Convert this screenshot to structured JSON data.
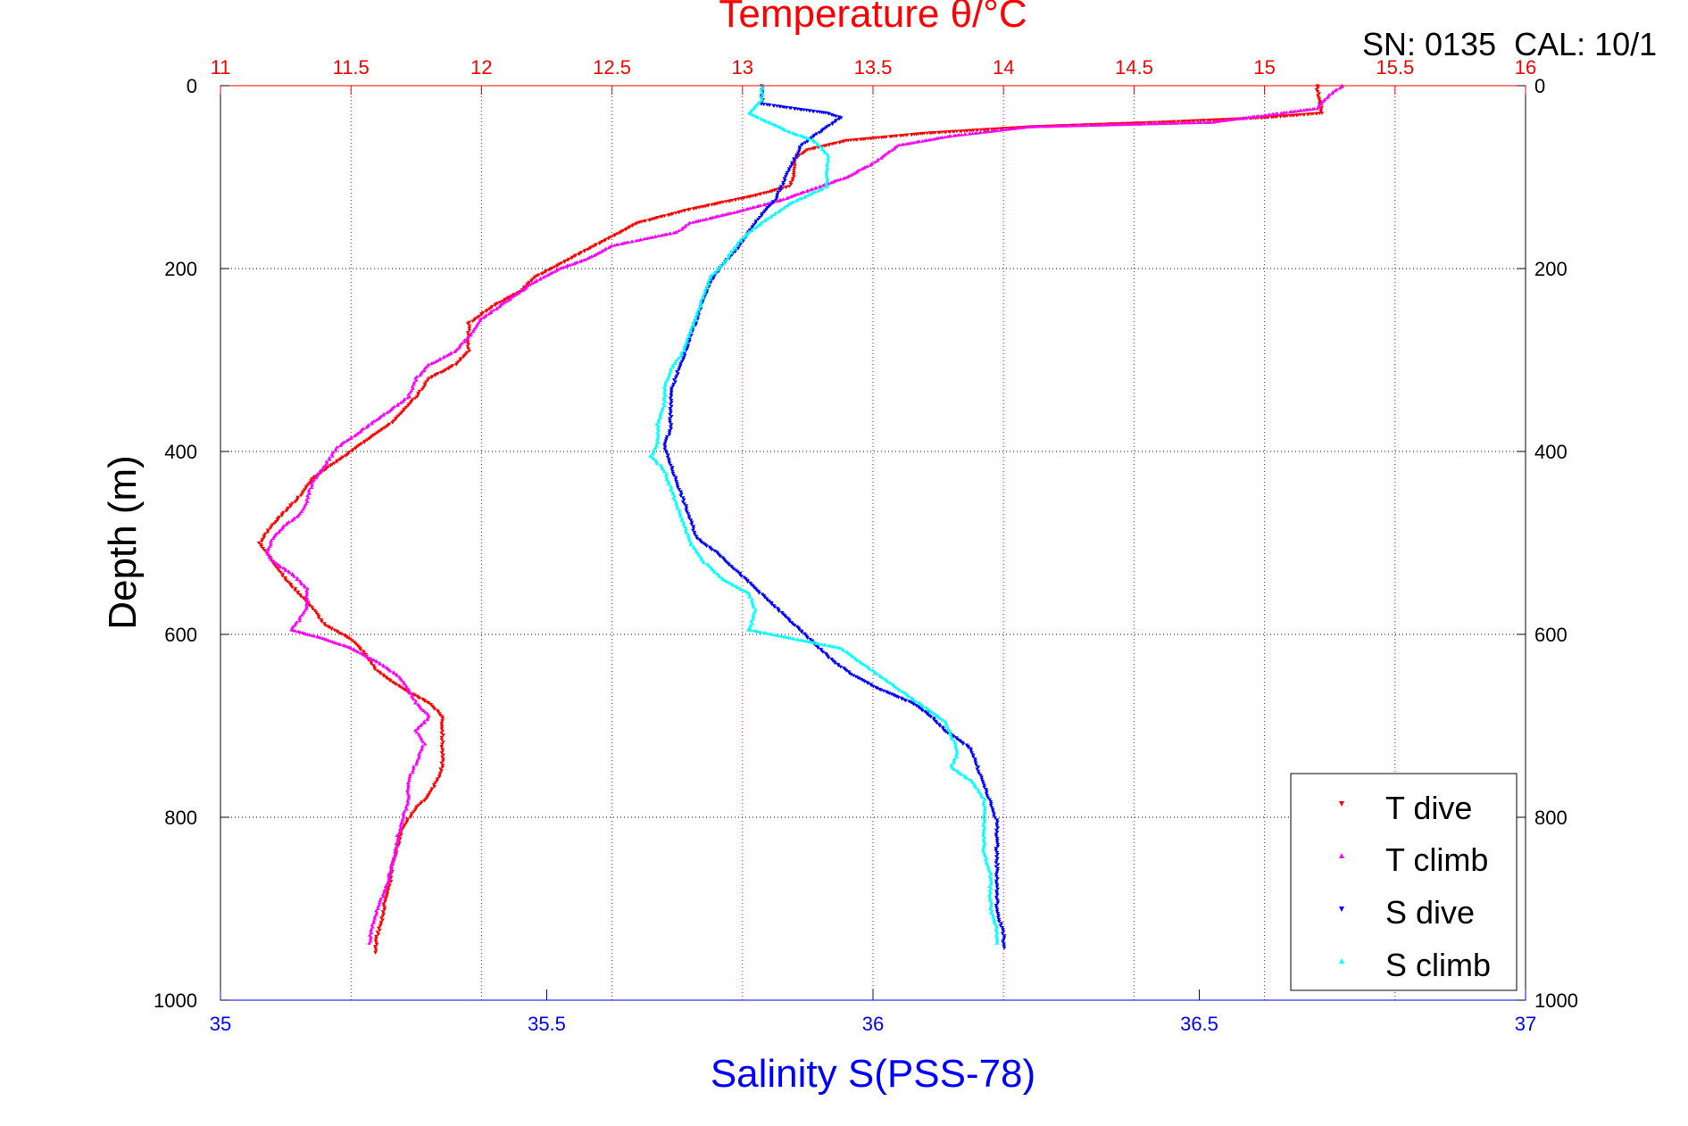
{
  "chart_data": {
    "type": "scatter",
    "title": "Temperature θ/°C",
    "annotation": "SN: 0135  CAL: 10/1",
    "ylabel": "Depth (m)",
    "xlabel_bottom": "Salinity S(PSS-78)",
    "xlabel_top": "Temperature θ/°C",
    "y_axis": {
      "range": [
        0,
        1000
      ],
      "inverted": true,
      "ticks": [
        "0",
        "200",
        "400",
        "600",
        "800",
        "1000"
      ]
    },
    "x_top_axis": {
      "range": [
        11,
        16
      ],
      "ticks": [
        "11",
        "11.5",
        "12",
        "12.5",
        "13",
        "13.5",
        "14",
        "14.5",
        "15",
        "15.5",
        "16"
      ],
      "color": "#ff0000",
      "grid": true
    },
    "x_bottom_axis": {
      "range": [
        35,
        37
      ],
      "ticks": [
        "35",
        "35.5",
        "36",
        "36.5",
        "37"
      ],
      "color": "#0000ff"
    },
    "grid": "dotted",
    "legend_position": "bottom-right",
    "series": [
      {
        "name": "T dive",
        "axis": "temperature",
        "color": "#ff0000",
        "marker": "triangle-down",
        "points": [
          [
            15.2,
            0
          ],
          [
            15.21,
            15
          ],
          [
            15.22,
            30
          ],
          [
            15.0,
            35
          ],
          [
            14.6,
            40
          ],
          [
            14.1,
            45
          ],
          [
            13.7,
            52
          ],
          [
            13.4,
            60
          ],
          [
            13.25,
            70
          ],
          [
            13.2,
            80
          ],
          [
            13.2,
            95
          ],
          [
            13.18,
            110
          ],
          [
            13.05,
            120
          ],
          [
            12.8,
            135
          ],
          [
            12.6,
            150
          ],
          [
            12.5,
            165
          ],
          [
            12.4,
            180
          ],
          [
            12.3,
            195
          ],
          [
            12.2,
            210
          ],
          [
            12.15,
            225
          ],
          [
            12.05,
            240
          ],
          [
            11.95,
            260
          ],
          [
            11.95,
            275
          ],
          [
            11.95,
            290
          ],
          [
            11.9,
            305
          ],
          [
            11.8,
            320
          ],
          [
            11.75,
            340
          ],
          [
            11.7,
            355
          ],
          [
            11.65,
            370
          ],
          [
            11.55,
            390
          ],
          [
            11.45,
            410
          ],
          [
            11.35,
            430
          ],
          [
            11.3,
            450
          ],
          [
            11.25,
            465
          ],
          [
            11.2,
            480
          ],
          [
            11.15,
            500
          ],
          [
            11.2,
            520
          ],
          [
            11.25,
            540
          ],
          [
            11.3,
            555
          ],
          [
            11.35,
            570
          ],
          [
            11.4,
            590
          ],
          [
            11.5,
            605
          ],
          [
            11.55,
            620
          ],
          [
            11.6,
            640
          ],
          [
            11.7,
            660
          ],
          [
            11.8,
            675
          ],
          [
            11.85,
            690
          ],
          [
            11.85,
            710
          ],
          [
            11.85,
            725
          ],
          [
            11.85,
            745
          ],
          [
            11.83,
            760
          ],
          [
            11.8,
            775
          ],
          [
            11.75,
            790
          ],
          [
            11.7,
            810
          ],
          [
            11.68,
            830
          ],
          [
            11.66,
            850
          ],
          [
            11.65,
            870
          ],
          [
            11.63,
            890
          ],
          [
            11.62,
            910
          ],
          [
            11.6,
            930
          ],
          [
            11.59,
            950
          ]
        ]
      },
      {
        "name": "T climb",
        "axis": "temperature",
        "color": "#ff00ff",
        "marker": "triangle-up",
        "points": [
          [
            15.3,
            0
          ],
          [
            15.25,
            10
          ],
          [
            15.2,
            25
          ],
          [
            14.8,
            40
          ],
          [
            14.1,
            45
          ],
          [
            13.8,
            55
          ],
          [
            13.6,
            65
          ],
          [
            13.55,
            75
          ],
          [
            13.5,
            85
          ],
          [
            13.4,
            100
          ],
          [
            13.3,
            110
          ],
          [
            13.15,
            125
          ],
          [
            12.95,
            140
          ],
          [
            12.8,
            150
          ],
          [
            12.75,
            160
          ],
          [
            12.5,
            175
          ],
          [
            12.4,
            190
          ],
          [
            12.3,
            200
          ],
          [
            12.2,
            215
          ],
          [
            12.1,
            235
          ],
          [
            12.0,
            255
          ],
          [
            11.95,
            275
          ],
          [
            11.9,
            290
          ],
          [
            11.8,
            305
          ],
          [
            11.75,
            320
          ],
          [
            11.72,
            340
          ],
          [
            11.65,
            355
          ],
          [
            11.55,
            375
          ],
          [
            11.45,
            395
          ],
          [
            11.4,
            415
          ],
          [
            11.35,
            435
          ],
          [
            11.33,
            455
          ],
          [
            11.3,
            470
          ],
          [
            11.25,
            480
          ],
          [
            11.2,
            495
          ],
          [
            11.18,
            510
          ],
          [
            11.2,
            520
          ],
          [
            11.28,
            535
          ],
          [
            11.33,
            550
          ],
          [
            11.33,
            570
          ],
          [
            11.3,
            585
          ],
          [
            11.27,
            595
          ],
          [
            11.4,
            605
          ],
          [
            11.5,
            615
          ],
          [
            11.6,
            630
          ],
          [
            11.68,
            645
          ],
          [
            11.72,
            660
          ],
          [
            11.75,
            675
          ],
          [
            11.8,
            690
          ],
          [
            11.75,
            705
          ],
          [
            11.78,
            720
          ],
          [
            11.75,
            740
          ],
          [
            11.72,
            760
          ],
          [
            11.72,
            780
          ],
          [
            11.7,
            800
          ],
          [
            11.68,
            820
          ],
          [
            11.67,
            840
          ],
          [
            11.65,
            860
          ],
          [
            11.63,
            880
          ],
          [
            11.6,
            900
          ],
          [
            11.58,
            920
          ],
          [
            11.57,
            940
          ]
        ]
      },
      {
        "name": "S dive",
        "axis": "salinity",
        "color": "#0000ff",
        "marker": "triangle-down",
        "points": [
          [
            35.83,
            0
          ],
          [
            35.83,
            20
          ],
          [
            35.93,
            30
          ],
          [
            35.95,
            35
          ],
          [
            35.92,
            50
          ],
          [
            35.89,
            65
          ],
          [
            35.88,
            80
          ],
          [
            35.87,
            95
          ],
          [
            35.86,
            110
          ],
          [
            35.85,
            125
          ],
          [
            35.83,
            140
          ],
          [
            35.81,
            160
          ],
          [
            35.79,
            180
          ],
          [
            35.77,
            195
          ],
          [
            35.75,
            215
          ],
          [
            35.74,
            235
          ],
          [
            35.73,
            255
          ],
          [
            35.72,
            275
          ],
          [
            35.71,
            295
          ],
          [
            35.7,
            315
          ],
          [
            35.69,
            335
          ],
          [
            35.69,
            355
          ],
          [
            35.69,
            375
          ],
          [
            35.68,
            395
          ],
          [
            35.69,
            415
          ],
          [
            35.7,
            435
          ],
          [
            35.71,
            455
          ],
          [
            35.72,
            475
          ],
          [
            35.73,
            495
          ],
          [
            35.76,
            510
          ],
          [
            35.79,
            530
          ],
          [
            35.82,
            550
          ],
          [
            35.85,
            570
          ],
          [
            35.88,
            590
          ],
          [
            35.91,
            610
          ],
          [
            35.94,
            630
          ],
          [
            35.97,
            645
          ],
          [
            36.01,
            660
          ],
          [
            36.06,
            675
          ],
          [
            36.09,
            690
          ],
          [
            36.11,
            705
          ],
          [
            36.15,
            725
          ],
          [
            36.16,
            745
          ],
          [
            36.17,
            765
          ],
          [
            36.18,
            785
          ],
          [
            36.19,
            805
          ],
          [
            36.19,
            825
          ],
          [
            36.19,
            845
          ],
          [
            36.19,
            865
          ],
          [
            36.19,
            885
          ],
          [
            36.19,
            905
          ],
          [
            36.2,
            925
          ],
          [
            36.2,
            945
          ]
        ]
      },
      {
        "name": "S climb",
        "axis": "salinity",
        "color": "#00ffff",
        "marker": "triangle-up",
        "points": [
          [
            35.83,
            0
          ],
          [
            35.83,
            15
          ],
          [
            35.81,
            30
          ],
          [
            35.84,
            40
          ],
          [
            35.87,
            50
          ],
          [
            35.91,
            60
          ],
          [
            35.93,
            75
          ],
          [
            35.93,
            90
          ],
          [
            35.93,
            110
          ],
          [
            35.9,
            120
          ],
          [
            35.87,
            130
          ],
          [
            35.84,
            145
          ],
          [
            35.81,
            160
          ],
          [
            35.79,
            175
          ],
          [
            35.77,
            195
          ],
          [
            35.75,
            210
          ],
          [
            35.74,
            230
          ],
          [
            35.73,
            250
          ],
          [
            35.72,
            270
          ],
          [
            35.71,
            290
          ],
          [
            35.69,
            310
          ],
          [
            35.68,
            330
          ],
          [
            35.68,
            350
          ],
          [
            35.67,
            370
          ],
          [
            35.67,
            390
          ],
          [
            35.66,
            405
          ],
          [
            35.68,
            420
          ],
          [
            35.69,
            440
          ],
          [
            35.7,
            460
          ],
          [
            35.71,
            480
          ],
          [
            35.72,
            500
          ],
          [
            35.74,
            520
          ],
          [
            35.77,
            540
          ],
          [
            35.81,
            555
          ],
          [
            35.82,
            575
          ],
          [
            35.81,
            595
          ],
          [
            35.88,
            605
          ],
          [
            35.95,
            615
          ],
          [
            35.98,
            630
          ],
          [
            36.01,
            645
          ],
          [
            36.04,
            660
          ],
          [
            36.08,
            680
          ],
          [
            36.11,
            695
          ],
          [
            36.12,
            710
          ],
          [
            36.13,
            730
          ],
          [
            36.12,
            745
          ],
          [
            36.15,
            760
          ],
          [
            36.17,
            780
          ],
          [
            36.17,
            800
          ],
          [
            36.17,
            820
          ],
          [
            36.17,
            840
          ],
          [
            36.18,
            860
          ],
          [
            36.18,
            880
          ],
          [
            36.18,
            900
          ],
          [
            36.19,
            920
          ],
          [
            36.19,
            940
          ]
        ]
      }
    ]
  }
}
